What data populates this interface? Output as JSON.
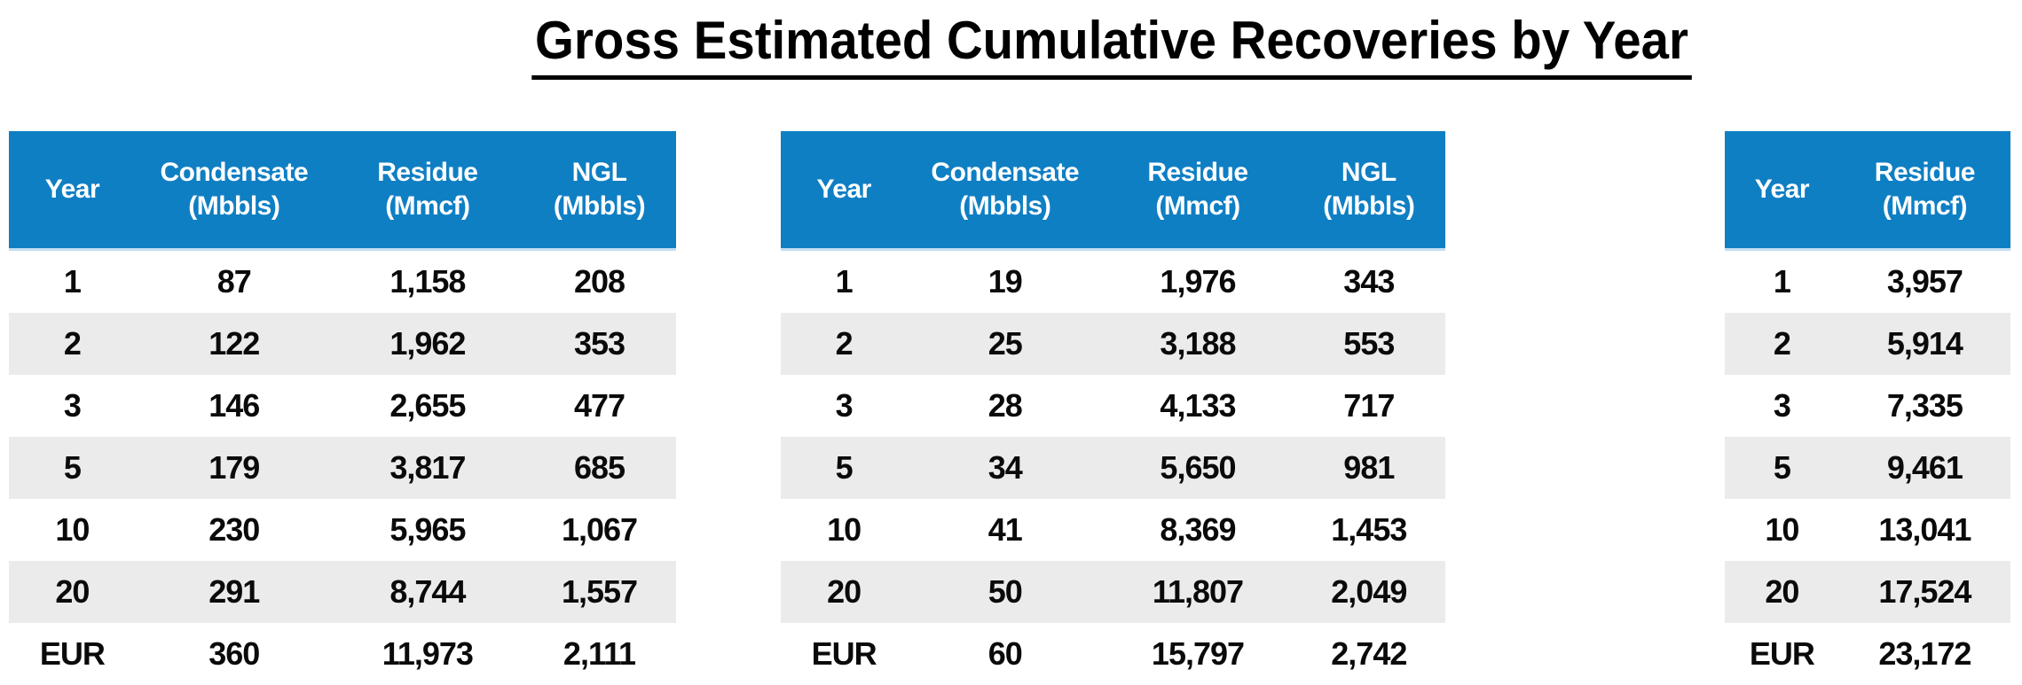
{
  "title": "Gross Estimated Cumulative Recoveries by Year",
  "colors": {
    "header_bg": "#0F7FC4",
    "header_edge": "#BFDDF2",
    "stripe": "#EBEBEB",
    "header_text": "#FFFFFF",
    "body_text": "#0A0A0A"
  },
  "tables": [
    {
      "name": "left-recovery-table",
      "columns": [
        {
          "label": "Year",
          "unit": ""
        },
        {
          "label": "Condensate",
          "unit": "(Mbbls)"
        },
        {
          "label": "Residue",
          "unit": "(Mmcf)"
        },
        {
          "label": "NGL",
          "unit": "(Mbbls)"
        }
      ],
      "rows": [
        [
          "1",
          "87",
          "1,158",
          "208"
        ],
        [
          "2",
          "122",
          "1,962",
          "353"
        ],
        [
          "3",
          "146",
          "2,655",
          "477"
        ],
        [
          "5",
          "179",
          "3,817",
          "685"
        ],
        [
          "10",
          "230",
          "5,965",
          "1,067"
        ],
        [
          "20",
          "291",
          "8,744",
          "1,557"
        ],
        [
          "EUR",
          "360",
          "11,973",
          "2,111"
        ]
      ]
    },
    {
      "name": "middle-recovery-table",
      "columns": [
        {
          "label": "Year",
          "unit": ""
        },
        {
          "label": "Condensate",
          "unit": "(Mbbls)"
        },
        {
          "label": "Residue",
          "unit": "(Mmcf)"
        },
        {
          "label": "NGL",
          "unit": "(Mbbls)"
        }
      ],
      "rows": [
        [
          "1",
          "19",
          "1,976",
          "343"
        ],
        [
          "2",
          "25",
          "3,188",
          "553"
        ],
        [
          "3",
          "28",
          "4,133",
          "717"
        ],
        [
          "5",
          "34",
          "5,650",
          "981"
        ],
        [
          "10",
          "41",
          "8,369",
          "1,453"
        ],
        [
          "20",
          "50",
          "11,807",
          "2,049"
        ],
        [
          "EUR",
          "60",
          "15,797",
          "2,742"
        ]
      ]
    },
    {
      "name": "right-recovery-table",
      "columns": [
        {
          "label": "Year",
          "unit": ""
        },
        {
          "label": "Residue",
          "unit": "(Mmcf)"
        }
      ],
      "rows": [
        [
          "1",
          "3,957"
        ],
        [
          "2",
          "5,914"
        ],
        [
          "3",
          "7,335"
        ],
        [
          "5",
          "9,461"
        ],
        [
          "10",
          "13,041"
        ],
        [
          "20",
          "17,524"
        ],
        [
          "EUR",
          "23,172"
        ]
      ]
    }
  ]
}
